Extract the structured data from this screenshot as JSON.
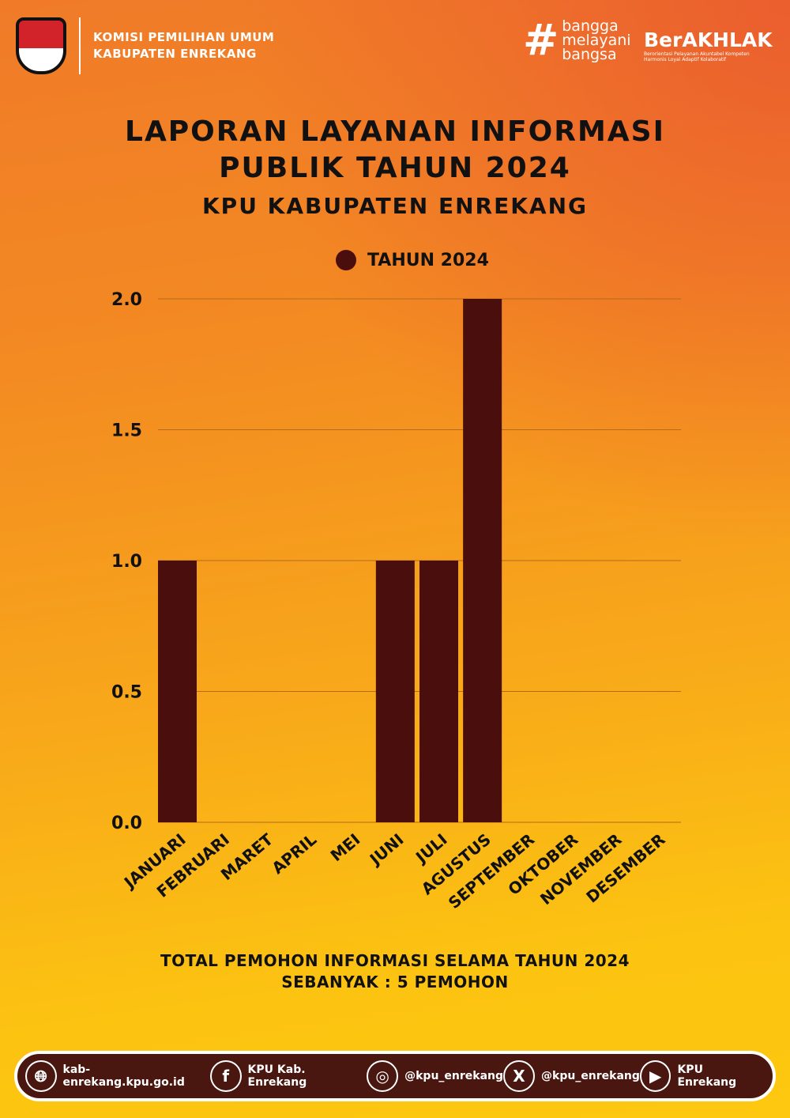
{
  "header": {
    "org_line1": "KOMISI PEMILIHAN UMUM",
    "org_line2": "KABUPATEN ENREKANG",
    "logo_text": "KOMISI PEMILIHAN UMUM",
    "tagline": [
      "bangga",
      "melayani",
      "bangsa"
    ],
    "berakhlak": "BerAKHLAK",
    "berakhlak_sub": "Berorientasi Pelayanan Akuntabel Kompeten Harmonis Loyal Adaptif Kolaboratif"
  },
  "title": {
    "line1": "LAPORAN LAYANAN INFORMASI",
    "line2": "PUBLIK TAHUN 2024",
    "line3": "KPU KABUPATEN ENREKANG"
  },
  "chart_data": {
    "type": "bar",
    "categories": [
      "JANUARI",
      "FEBRUARI",
      "MARET",
      "APRIL",
      "MEI",
      "JUNI",
      "JULI",
      "AGUSTUS",
      "SEPTEMBER",
      "OKTOBER",
      "NOVEMBER",
      "DESEMBER"
    ],
    "series": [
      {
        "name": "TAHUN 2024",
        "values": [
          1,
          0,
          0,
          0,
          0,
          1,
          1,
          2,
          0,
          0,
          0,
          0
        ]
      }
    ],
    "ylim": [
      0,
      2
    ],
    "yticks": [
      "0.0",
      "0.5",
      "1.0",
      "1.5",
      "2.0"
    ],
    "grid": true,
    "legend": "top",
    "bar_color": "#4a0e0c"
  },
  "summary": {
    "line1": "TOTAL PEMOHON INFORMASI SELAMA TAHUN 2024",
    "line2": "SEBANYAK : 5 PEMOHON"
  },
  "footer": [
    {
      "icon": "globe-icon",
      "label": "kab-enrekang.kpu.go.id"
    },
    {
      "icon": "facebook-icon",
      "label": "KPU Kab. Enrekang"
    },
    {
      "icon": "instagram-icon",
      "label": "@kpu_enrekang"
    },
    {
      "icon": "x-icon",
      "label": "@kpu_enrekang"
    },
    {
      "icon": "youtube-icon",
      "label": "KPU Enrekang"
    }
  ]
}
